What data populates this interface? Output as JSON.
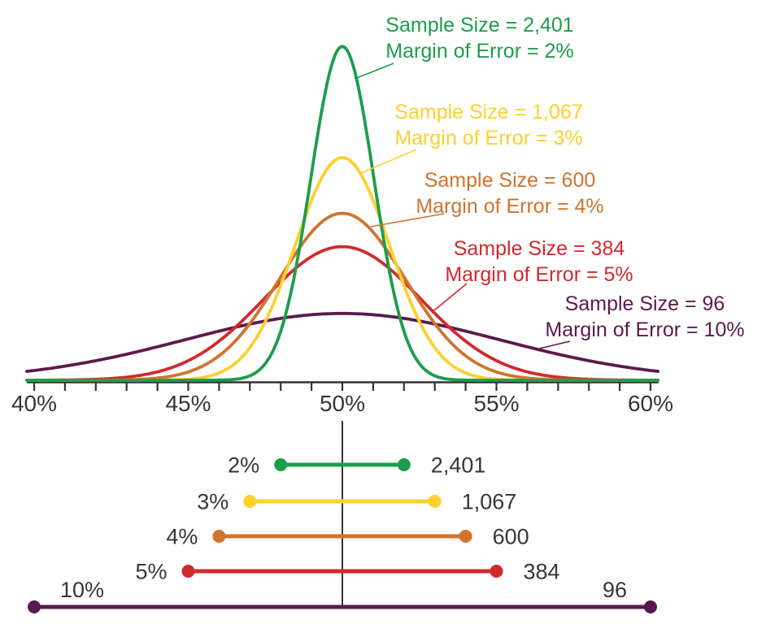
{
  "page": {
    "background": "#ffffff",
    "axis_color": "#333333",
    "text_color": "#363636"
  },
  "chart_data": {
    "type": "line",
    "subtype": "normal-distribution-curves-with-confidence-interval-bars",
    "center_pct": 50,
    "x_axis": {
      "min_pct": 40,
      "max_pct": 60,
      "minor_tick_step_pct": 1,
      "label_step_pct": 5,
      "tick_labels": [
        "40%",
        "45%",
        "50%",
        "55%",
        "60%"
      ],
      "tick_label_values": [
        40,
        45,
        50,
        55,
        60
      ]
    },
    "model_note": "Each curve is a normal distribution centered at 50%; sigma = margin_of_error/1.96; peak height proportional to 1/margin_of_error.",
    "series": [
      {
        "sample_size": 2401,
        "sample_size_label": "2,401",
        "margin_of_error_pct": 2,
        "moe_label": "2%",
        "confidence_interval_pct": [
          48,
          52
        ],
        "annotation_line1": "Sample Size = 2,401",
        "annotation_line2": "Margin of Error = 2%",
        "color": "#1d9d4b"
      },
      {
        "sample_size": 1067,
        "sample_size_label": "1,067",
        "margin_of_error_pct": 3,
        "moe_label": "3%",
        "confidence_interval_pct": [
          47,
          53
        ],
        "annotation_line1": "Sample Size = 1,067",
        "annotation_line2": "Margin of Error = 3%",
        "color": "#fdd02f"
      },
      {
        "sample_size": 600,
        "sample_size_label": "600",
        "margin_of_error_pct": 4,
        "moe_label": "4%",
        "confidence_interval_pct": [
          46,
          54
        ],
        "annotation_line1": "Sample Size = 600",
        "annotation_line2": "Margin of Error = 4%",
        "color": "#d0742e"
      },
      {
        "sample_size": 384,
        "sample_size_label": "384",
        "margin_of_error_pct": 5,
        "moe_label": "5%",
        "confidence_interval_pct": [
          45,
          55
        ],
        "annotation_line1": "Sample Size = 384",
        "annotation_line2": "Margin of Error = 5%",
        "color": "#d2292e"
      },
      {
        "sample_size": 96,
        "sample_size_label": "96",
        "margin_of_error_pct": 10,
        "moe_label": "10%",
        "confidence_interval_pct": [
          40,
          60
        ],
        "annotation_line1": "Sample Size = 96",
        "annotation_line2": "Margin of Error = 10%",
        "color": "#5b1a4d"
      }
    ]
  }
}
